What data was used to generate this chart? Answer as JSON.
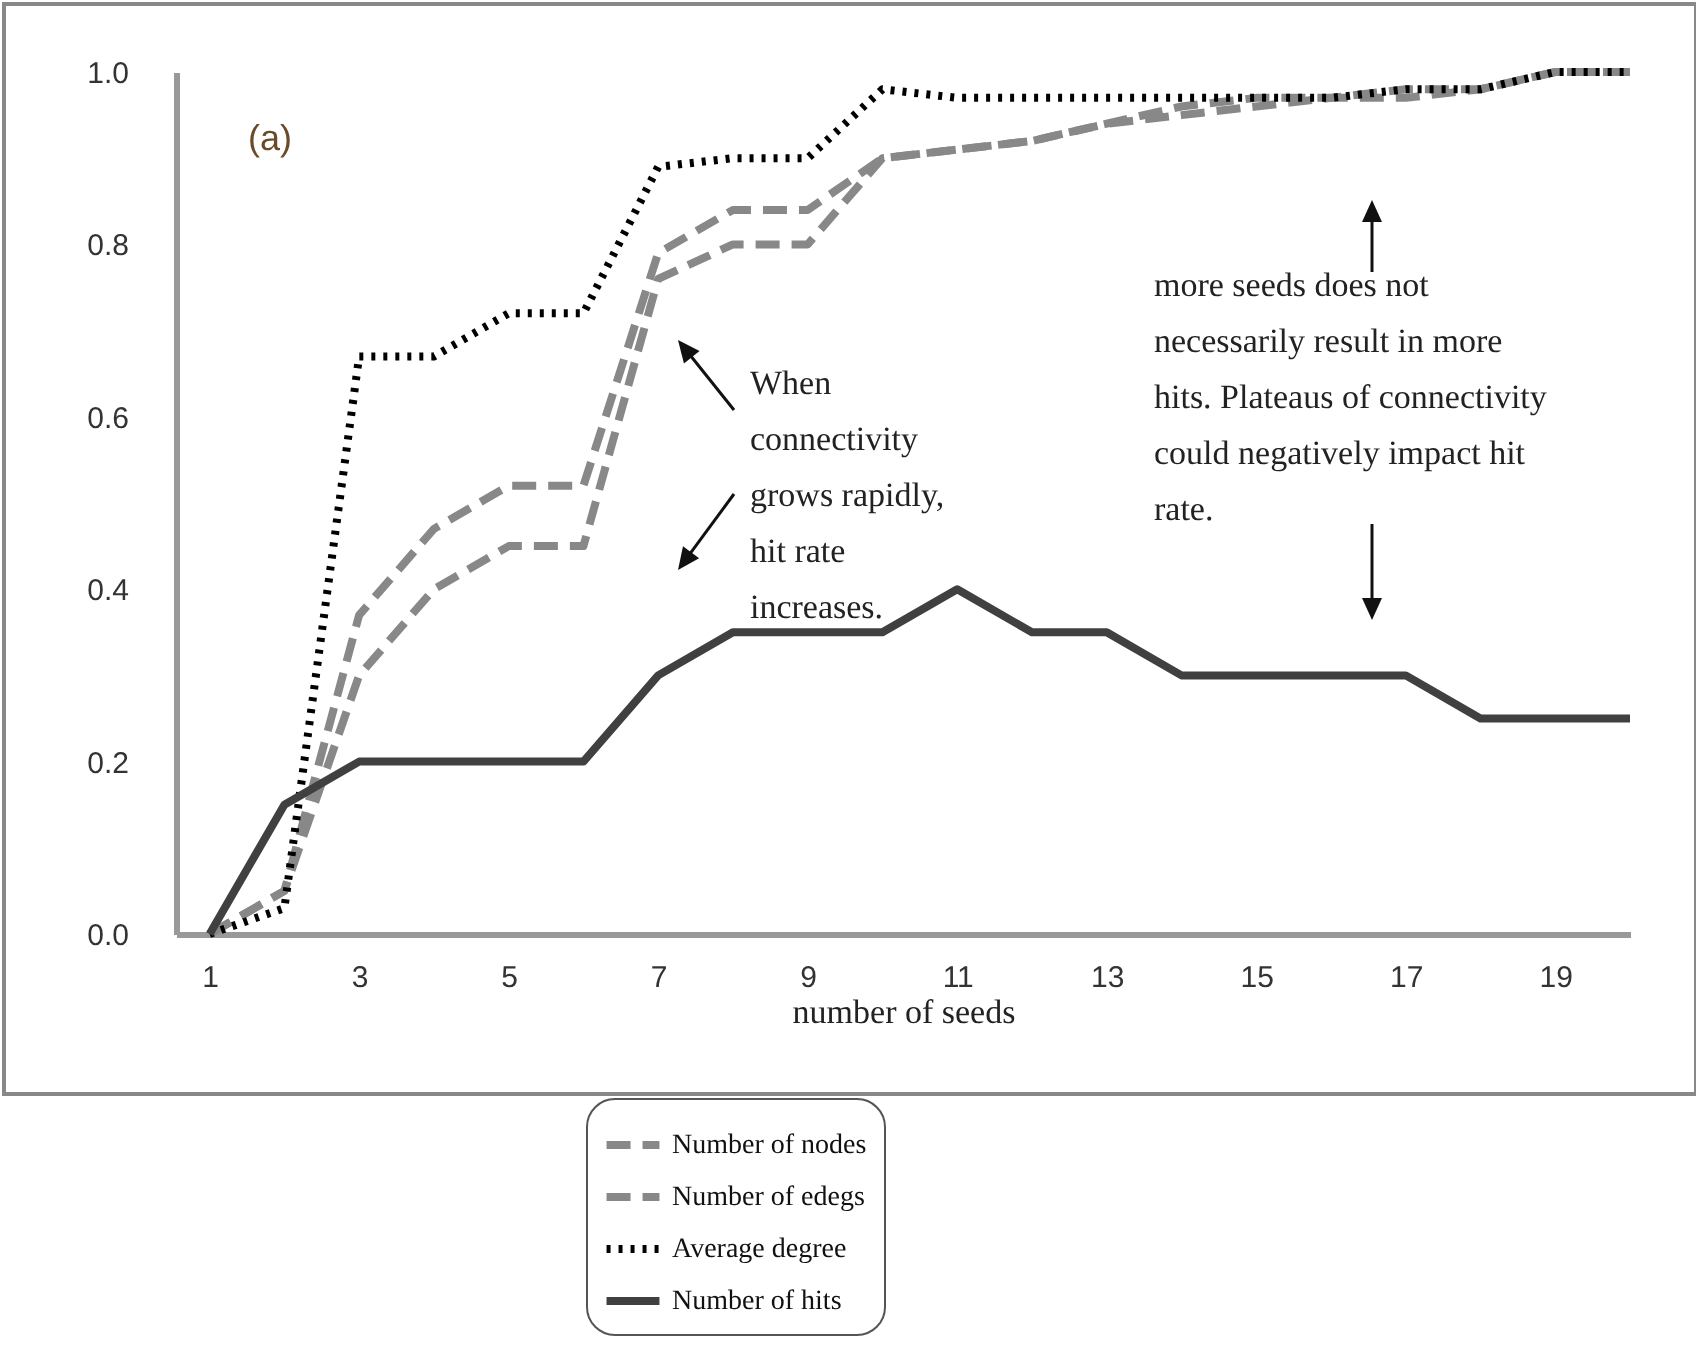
{
  "chart_data": {
    "type": "line",
    "title": "(a)",
    "xlabel": "number of seeds",
    "x": [
      1,
      2,
      3,
      4,
      5,
      6,
      7,
      8,
      9,
      10,
      11,
      12,
      13,
      14,
      15,
      16,
      17,
      18,
      19,
      20
    ],
    "xlim": [
      0.55,
      20
    ],
    "xticks": [
      1,
      3,
      5,
      7,
      9,
      11,
      13,
      15,
      17,
      19
    ],
    "ylim": [
      0,
      1
    ],
    "yticks": [
      {
        "value": 0,
        "label": "0.0"
      },
      {
        "value": 0.2,
        "label": "0.2"
      },
      {
        "value": 0.4,
        "label": "0.4"
      },
      {
        "value": 0.6,
        "label": "0.6"
      },
      {
        "value": 0.8,
        "label": "0.8"
      },
      {
        "value": 1,
        "label": "1.0"
      }
    ],
    "grid": false,
    "legend": "bottom",
    "series": [
      {
        "name": "Number of nodes",
        "color": "#888888",
        "line_style": "dashed",
        "values": [
          0,
          0.05,
          0.37,
          0.47,
          0.52,
          0.52,
          0.79,
          0.84,
          0.84,
          0.9,
          0.91,
          0.92,
          0.94,
          0.96,
          0.97,
          0.97,
          0.98,
          0.98,
          1.0,
          1.0
        ]
      },
      {
        "name": "Number of edegs",
        "color": "#888888",
        "line_style": "dashed",
        "values": [
          0,
          0.05,
          0.3,
          0.4,
          0.45,
          0.45,
          0.76,
          0.8,
          0.8,
          0.9,
          0.91,
          0.92,
          0.94,
          0.95,
          0.96,
          0.97,
          0.97,
          0.98,
          1.0,
          1.0
        ]
      },
      {
        "name": "Average degree",
        "color": "#000000",
        "line_style": "dotted",
        "values": [
          0,
          0.03,
          0.67,
          0.67,
          0.72,
          0.72,
          0.89,
          0.9,
          0.9,
          0.98,
          0.97,
          0.97,
          0.97,
          0.97,
          0.97,
          0.97,
          0.98,
          0.98,
          1.0,
          1.0
        ]
      },
      {
        "name": "Number of hits",
        "color": "#404040",
        "line_style": "solid",
        "values": [
          0,
          0.15,
          0.2,
          0.2,
          0.2,
          0.2,
          0.3,
          0.35,
          0.35,
          0.35,
          0.4,
          0.35,
          0.35,
          0.3,
          0.3,
          0.3,
          0.3,
          0.25,
          0.25,
          0.25
        ]
      }
    ],
    "annotations": [
      "When connectivity grows rapidly, hit rate increases.",
      "more seeds does not necessarily result in more hits. Plateaus of connectivity could negatively impact  hit rate."
    ]
  }
}
